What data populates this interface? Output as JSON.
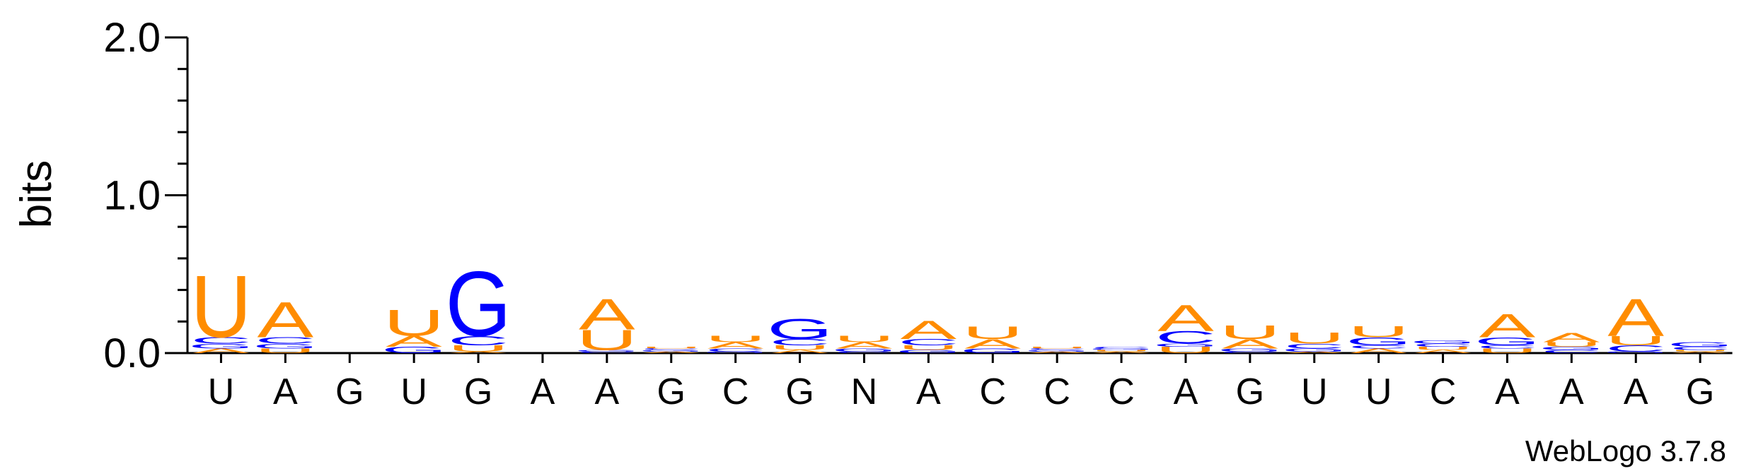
{
  "chart_data": {
    "type": "sequence-logo",
    "ylabel": "bits",
    "ylim": [
      0,
      2
    ],
    "yticks": [
      {
        "value": 0,
        "label": "0.0"
      },
      {
        "value": 1,
        "label": "1.0"
      },
      {
        "value": 2,
        "label": "2.0"
      }
    ],
    "colors": {
      "A": "#ff8c00",
      "U": "#ff8c00",
      "G": "#0000ff",
      "C": "#0000ff",
      "N": "#000000"
    },
    "positions": [
      {
        "label": "U",
        "stack": [
          [
            "A",
            0.03
          ],
          [
            "G",
            0.03
          ],
          [
            "C",
            0.04
          ],
          [
            "U",
            0.4
          ]
        ]
      },
      {
        "label": "A",
        "stack": [
          [
            "U",
            0.03
          ],
          [
            "G",
            0.03
          ],
          [
            "C",
            0.04
          ],
          [
            "A",
            0.23
          ]
        ]
      },
      {
        "label": "G",
        "stack": []
      },
      {
        "label": "U",
        "stack": [
          [
            "G",
            0.04
          ],
          [
            "A",
            0.07
          ],
          [
            "U",
            0.17
          ]
        ]
      },
      {
        "label": "G",
        "stack": [
          [
            "A",
            0.01
          ],
          [
            "U",
            0.04
          ],
          [
            "C",
            0.06
          ],
          [
            "G",
            0.42
          ]
        ]
      },
      {
        "label": "A",
        "stack": []
      },
      {
        "label": "A",
        "stack": [
          [
            "C",
            0.01
          ],
          [
            "G",
            0.01
          ],
          [
            "U",
            0.13
          ],
          [
            "A",
            0.2
          ]
        ]
      },
      {
        "label": "G",
        "stack": [
          [
            "A",
            0.01
          ],
          [
            "G",
            0.01
          ],
          [
            "C",
            0.01
          ],
          [
            "U",
            0.01
          ]
        ]
      },
      {
        "label": "C",
        "stack": [
          [
            "G",
            0.01
          ],
          [
            "C",
            0.02
          ],
          [
            "A",
            0.04
          ],
          [
            "U",
            0.04
          ]
        ]
      },
      {
        "label": "G",
        "stack": [
          [
            "A",
            0.02
          ],
          [
            "U",
            0.03
          ],
          [
            "C",
            0.04
          ],
          [
            "G",
            0.13
          ]
        ]
      },
      {
        "label": "N",
        "stack": [
          [
            "C",
            0.01
          ],
          [
            "G",
            0.02
          ],
          [
            "A",
            0.04
          ],
          [
            "U",
            0.04
          ]
        ]
      },
      {
        "label": "A",
        "stack": [
          [
            "G",
            0.02
          ],
          [
            "U",
            0.03
          ],
          [
            "C",
            0.04
          ],
          [
            "A",
            0.12
          ]
        ]
      },
      {
        "label": "C",
        "stack": [
          [
            "G",
            0.03
          ],
          [
            "A",
            0.06
          ],
          [
            "U",
            0.08
          ]
        ]
      },
      {
        "label": "C",
        "stack": [
          [
            "A",
            0.01
          ],
          [
            "G",
            0.01
          ],
          [
            "C",
            0.01
          ],
          [
            "U",
            0.01
          ]
        ]
      },
      {
        "label": "C",
        "stack": [
          [
            "A",
            0.01
          ],
          [
            "U",
            0.01
          ],
          [
            "G",
            0.01
          ],
          [
            "C",
            0.01
          ]
        ]
      },
      {
        "label": "A",
        "stack": [
          [
            "U",
            0.04
          ],
          [
            "G",
            0.02
          ],
          [
            "C",
            0.08
          ],
          [
            "A",
            0.17
          ]
        ]
      },
      {
        "label": "G",
        "stack": [
          [
            "C",
            0.01
          ],
          [
            "G",
            0.02
          ],
          [
            "A",
            0.06
          ],
          [
            "U",
            0.09
          ]
        ]
      },
      {
        "label": "U",
        "stack": [
          [
            "A",
            0.01
          ],
          [
            "G",
            0.02
          ],
          [
            "C",
            0.03
          ],
          [
            "U",
            0.07
          ]
        ]
      },
      {
        "label": "U",
        "stack": [
          [
            "A",
            0.03
          ],
          [
            "C",
            0.02
          ],
          [
            "G",
            0.05
          ],
          [
            "U",
            0.07
          ]
        ]
      },
      {
        "label": "C",
        "stack": [
          [
            "A",
            0.02
          ],
          [
            "U",
            0.02
          ],
          [
            "C",
            0.02
          ],
          [
            "G",
            0.02
          ]
        ]
      },
      {
        "label": "A",
        "stack": [
          [
            "U",
            0.03
          ],
          [
            "C",
            0.02
          ],
          [
            "G",
            0.05
          ],
          [
            "A",
            0.15
          ]
        ]
      },
      {
        "label": "A",
        "stack": [
          [
            "C",
            0.02
          ],
          [
            "G",
            0.02
          ],
          [
            "U",
            0.03
          ],
          [
            "A",
            0.06
          ]
        ]
      },
      {
        "label": "A",
        "stack": [
          [
            "G",
            0.01
          ],
          [
            "C",
            0.04
          ],
          [
            "U",
            0.06
          ],
          [
            "A",
            0.24
          ]
        ]
      },
      {
        "label": "G",
        "stack": [
          [
            "A",
            0.01
          ],
          [
            "U",
            0.01
          ],
          [
            "C",
            0.02
          ],
          [
            "G",
            0.03
          ]
        ]
      }
    ]
  },
  "footer": {
    "credit": "WebLogo 3.7.8"
  }
}
